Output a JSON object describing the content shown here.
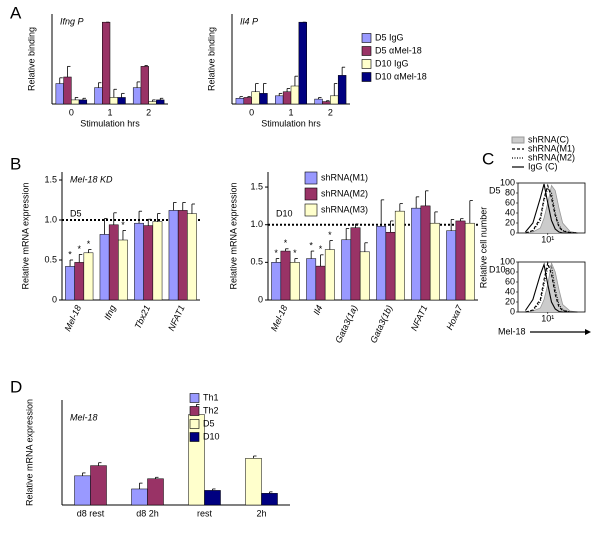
{
  "chart_data": [
    {
      "type": "bar",
      "panel": "A",
      "title": "Ifng P",
      "ylabel": "Relative binding",
      "xlabel": "Stimulation hrs",
      "categories": [
        "0",
        "1",
        "2"
      ],
      "ylim": [
        0,
        1.1
      ],
      "series": [
        {
          "color": "#9999ff",
          "values": [
            0.25,
            0.2,
            0.2
          ],
          "errors": [
            0.07,
            0.06,
            0.07
          ]
        },
        {
          "color": "#993366",
          "values": [
            0.33,
            1.0,
            0.46
          ],
          "errors": [
            0.13,
            0,
            0.01
          ]
        },
        {
          "color": "#ffffcc",
          "values": [
            0.05,
            0.08,
            0.03
          ],
          "errors": [
            0.03,
            0.1,
            0.02
          ]
        },
        {
          "color": "#000080",
          "values": [
            0.05,
            0.08,
            0.05
          ],
          "errors": [
            0.02,
            0.05,
            0.02
          ]
        }
      ]
    },
    {
      "type": "bar",
      "title": "Il4 P",
      "ylabel": "Relative binding",
      "xlabel": "Stimulation hrs",
      "categories": [
        "0",
        "1",
        "2"
      ],
      "ylim": [
        0,
        1.1
      ],
      "series": [
        {
          "name": "D5 IgG",
          "color": "#9999ff",
          "values": [
            0.07,
            0.1,
            0.06
          ],
          "errors": [
            0.02,
            0.03,
            0.02
          ]
        },
        {
          "name": "D5 αMel-18",
          "color": "#993366",
          "values": [
            0.08,
            0.15,
            0.03
          ],
          "errors": [
            0.01,
            0.04,
            0.01
          ]
        },
        {
          "name": "D10 IgG",
          "color": "#ffffcc",
          "values": [
            0.15,
            0.22,
            0.1
          ],
          "errors": [
            0.1,
            0.12,
            0.15
          ]
        },
        {
          "name": "D10 αMel-18",
          "color": "#000080",
          "values": [
            0.13,
            1.0,
            0.35
          ],
          "errors": [
            0.12,
            0,
            0.1
          ]
        }
      ]
    },
    {
      "type": "bar",
      "panel": "B",
      "title": "Mel-18 KD",
      "subtitle": "D5",
      "ylabel": "Relative mRNA expression",
      "categories": [
        "Mel-18",
        "Ifng",
        "Tbx21",
        "NFAT1"
      ],
      "ylim": [
        0,
        1.6
      ],
      "yticks": [
        0,
        0.5,
        {
          "value": 1,
          "label": "1.0"
        },
        1.5
      ],
      "refline": 1,
      "series": [
        {
          "color": "#9999ff",
          "values": [
            0.42,
            0.82,
            0.96,
            1.12
          ],
          "errors": [
            0.08,
            0.2,
            0.15,
            0.1
          ],
          "stars": [
            "*",
            null,
            null,
            null
          ]
        },
        {
          "color": "#993366",
          "values": [
            0.47,
            0.94,
            0.93,
            1.12
          ],
          "errors": [
            0.1,
            0.15,
            0.08,
            0.1
          ],
          "stars": [
            "*",
            null,
            null,
            null
          ]
        },
        {
          "color": "#ffffcc",
          "values": [
            0.59,
            0.75,
            0.98,
            1.08
          ],
          "errors": [
            0.04,
            0.12,
            0.1,
            0.12
          ],
          "stars": [
            "*",
            "*",
            null,
            null
          ]
        }
      ]
    },
    {
      "type": "bar",
      "subtitle": "D10",
      "ylabel": "Relative mRNA expression",
      "categories": [
        "Mel-18",
        "Il4",
        "Gata3(1a)",
        "Gata3(1b)",
        "NFAT1",
        "Hoxa7"
      ],
      "ylim": [
        0,
        1.7
      ],
      "yticks": [
        0,
        0.5,
        {
          "value": 1,
          "label": "1.0"
        },
        1.5
      ],
      "refline": 1,
      "series": [
        {
          "name": "shRNA(M1)",
          "color": "#9999ff",
          "values": [
            0.5,
            0.55,
            0.8,
            0.98,
            1.22,
            0.92
          ],
          "errors": [
            0.05,
            0.1,
            0.15,
            0.35,
            0.15,
            0.15
          ],
          "stars": [
            "*",
            "*",
            null,
            null,
            null,
            null
          ]
        },
        {
          "name": "shRNA(M2)",
          "color": "#993366",
          "values": [
            0.65,
            0.45,
            0.96,
            0.9,
            1.25,
            1.05
          ],
          "errors": [
            0.03,
            0.15,
            0.05,
            0.15,
            0.2,
            0.03
          ],
          "stars": [
            "*",
            "*",
            null,
            null,
            null,
            null
          ]
        },
        {
          "name": "shRNA(M3)",
          "color": "#ffffcc",
          "values": [
            0.5,
            0.67,
            0.64,
            1.18,
            1.02,
            1.02
          ],
          "errors": [
            0.05,
            0.12,
            0.12,
            0.1,
            0.15,
            0.3
          ],
          "stars": [
            "*",
            "*",
            null,
            null,
            null,
            null
          ]
        }
      ]
    },
    {
      "type": "histogram-overlay",
      "panel": "C",
      "ylabel": "Relative cell number",
      "xlabel": "Mel-18",
      "x": [
        0.4,
        0.6,
        0.8,
        0.9,
        1.0,
        1.1,
        1.2,
        1.3,
        1.4,
        1.6,
        1.8
      ],
      "xlim": [
        0.2,
        2.0
      ],
      "ylim": [
        0,
        100
      ],
      "xticks": [
        {
          "value": 1,
          "label": "10¹"
        }
      ],
      "yticks": [
        0,
        20,
        40,
        60,
        80,
        100
      ],
      "series": [
        {
          "name": "shRNA(C)",
          "color": "#999999",
          "style": "filled"
        },
        {
          "name": "shRNA(M1)",
          "color": "#000000",
          "style": "dashed"
        },
        {
          "name": "shRNA(M2)",
          "color": "#000000",
          "style": "dotted"
        },
        {
          "name": "IgG (C)",
          "color": "#000000",
          "style": "solid"
        }
      ],
      "subplots": [
        {
          "label": "D5",
          "values": [
            [
              0,
              2,
              10,
              30,
              60,
              95,
              85,
              50,
              20,
              3,
              0
            ],
            [
              0,
              5,
              30,
              70,
              95,
              70,
              35,
              12,
              4,
              1,
              0
            ],
            [
              0,
              4,
              25,
              65,
              90,
              80,
              40,
              15,
              5,
              1,
              0
            ],
            [
              2,
              20,
              70,
              98,
              60,
              25,
              8,
              2,
              0,
              0,
              0
            ]
          ]
        },
        {
          "label": "D10",
          "values": [
            [
              0,
              2,
              8,
              25,
              55,
              98,
              80,
              45,
              15,
              2,
              0
            ],
            [
              0,
              4,
              25,
              65,
              98,
              75,
              35,
              10,
              3,
              0,
              0
            ],
            [
              0,
              3,
              20,
              55,
              90,
              92,
              45,
              15,
              4,
              0,
              0
            ],
            [
              3,
              25,
              75,
              95,
              55,
              20,
              6,
              1,
              0,
              0,
              0
            ]
          ]
        }
      ]
    },
    {
      "type": "bar",
      "panel": "D",
      "title": "Mel-18",
      "ylabel": "Relative mRNA expression",
      "categories": [
        "d8 rest",
        "d8 2h",
        "rest",
        "2h"
      ],
      "ylim": [
        0,
        3.6
      ],
      "series": [
        {
          "name": "Th1",
          "color": "#9999ff",
          "values": [
            1.0,
            0.55,
            null,
            null
          ],
          "errors": [
            0.1,
            0.2,
            null,
            null
          ]
        },
        {
          "name": "Th2",
          "color": "#993366",
          "values": [
            1.35,
            0.9,
            null,
            null
          ],
          "errors": [
            0.1,
            0.05,
            null,
            null
          ]
        },
        {
          "name": "D5",
          "color": "#ffffcc",
          "values": [
            null,
            null,
            3.1,
            1.6
          ],
          "errors": [
            null,
            null,
            0.35,
            0.08
          ]
        },
        {
          "name": "D10",
          "color": "#000080",
          "values": [
            null,
            null,
            0.5,
            0.4
          ],
          "errors": [
            null,
            null,
            0.05,
            0.05
          ]
        }
      ]
    }
  ]
}
